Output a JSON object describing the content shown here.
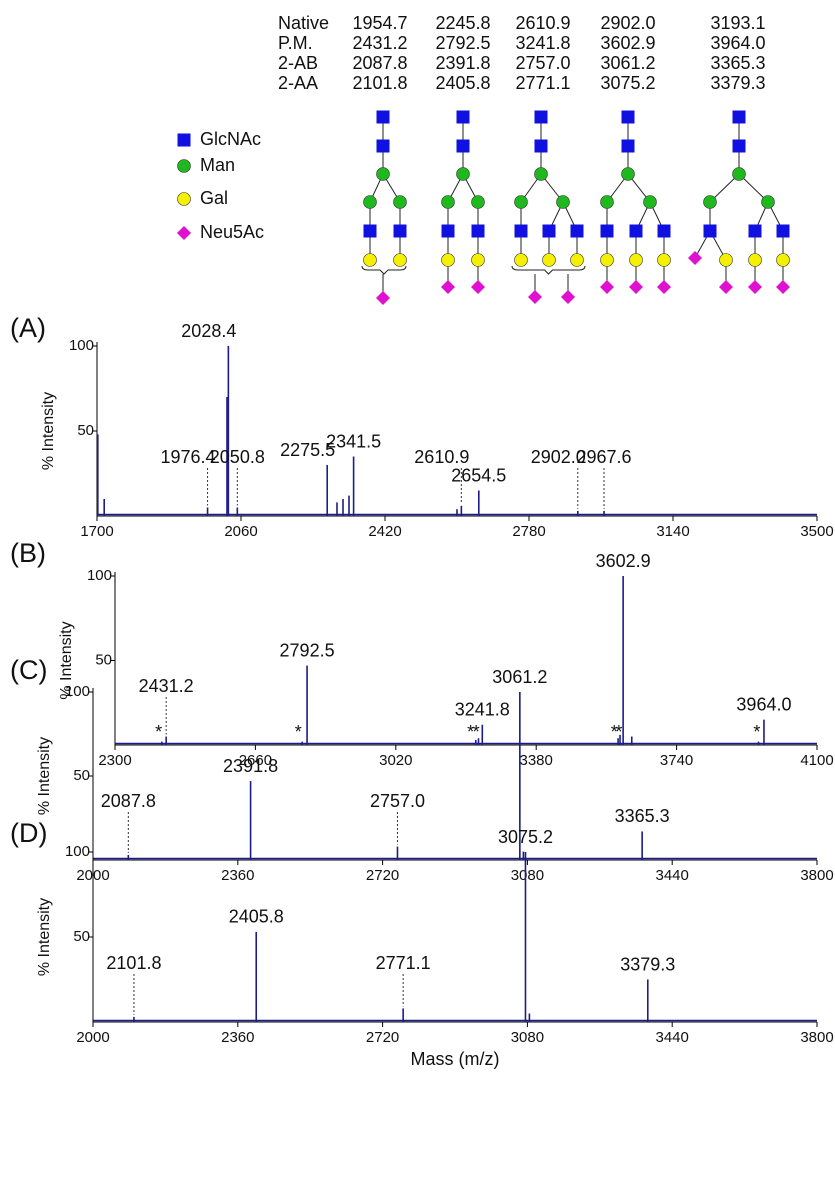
{
  "mass_table": {
    "rows": [
      {
        "label": "Native",
        "values": [
          "1954.7",
          "2245.8",
          "2610.9",
          "2902.0",
          "3193.1"
        ]
      },
      {
        "label": "P.M.",
        "values": [
          "2431.2",
          "2792.5",
          "3241.8",
          "3602.9",
          "3964.0"
        ]
      },
      {
        "label": "2-AB",
        "values": [
          "2087.8",
          "2391.8",
          "2757.0",
          "3061.2",
          "3365.3"
        ]
      },
      {
        "label": "2-AA",
        "values": [
          "2101.8",
          "2405.8",
          "2771.1",
          "3075.2",
          "3379.3"
        ]
      }
    ]
  },
  "legend": [
    "GlcNAc",
    "Man",
    "Gal",
    "Neu5Ac"
  ],
  "chart_data": [
    {
      "type": "stem",
      "panel": "(A)",
      "ylabel": "% Intensity",
      "color": "#1c1c8a",
      "xlim": [
        1700,
        3500
      ],
      "xticks": [
        1700,
        2060,
        2420,
        2780,
        3140,
        3500
      ],
      "ylim": [
        0,
        100
      ],
      "yticks": [
        50,
        100
      ],
      "x": [
        1702,
        1718,
        1976.4,
        2025,
        2028.4,
        2050.8,
        2275.5,
        2300,
        2315,
        2330,
        2341.5,
        2600,
        2610.9,
        2654.5,
        2902.0,
        2967.6
      ],
      "values": [
        48,
        10,
        5,
        70,
        100,
        5,
        30,
        8,
        10,
        12,
        35,
        4,
        6,
        15,
        3,
        3
      ],
      "labels": [
        null,
        null,
        "1976.4",
        null,
        "2028.4",
        "2050.8",
        "2275.5",
        null,
        null,
        null,
        "2341.5",
        null,
        "2610.9",
        "2654.5",
        "2902.0",
        "2967.6"
      ]
    },
    {
      "type": "stem",
      "panel": "(B)",
      "ylabel": "% Intensity",
      "color": "#1c1c8a",
      "xlim": [
        2300,
        4100
      ],
      "xticks": [
        2300,
        2660,
        3020,
        3380,
        3740,
        4100
      ],
      "ylim": [
        0,
        100
      ],
      "yticks": [
        50,
        100
      ],
      "x": [
        2420,
        2431.2,
        2780,
        2792.5,
        3225,
        3232,
        3241.8,
        3590,
        3595,
        3602.9,
        3625,
        3950,
        3964.0
      ],
      "values": [
        2,
        5,
        2,
        47,
        3,
        4,
        12,
        4,
        6,
        100,
        5,
        2,
        15
      ],
      "labels": [
        null,
        "2431.2",
        null,
        "2792.5",
        null,
        null,
        "3241.8",
        null,
        null,
        "3602.9",
        null,
        null,
        "3964.0"
      ],
      "annotations": [
        {
          "x": 2412,
          "text": "*"
        },
        {
          "x": 2770,
          "text": "*"
        },
        {
          "x": 3212,
          "text": "*"
        },
        {
          "x": 3226,
          "text": "*"
        },
        {
          "x": 3580,
          "text": "*"
        },
        {
          "x": 3592,
          "text": "*"
        },
        {
          "x": 3946,
          "text": "*"
        }
      ]
    },
    {
      "type": "stem",
      "panel": "(C)",
      "ylabel": "% Intensity",
      "color": "#1c1c8a",
      "xlim": [
        2000,
        3800
      ],
      "xticks": [
        2000,
        2360,
        2720,
        3080,
        3440,
        3800
      ],
      "ylim": [
        0,
        100
      ],
      "yticks": [
        50,
        100
      ],
      "x": [
        2087.8,
        2391.8,
        2757.0,
        3061.2,
        3070,
        3365.3
      ],
      "values": [
        3,
        47,
        8,
        100,
        5,
        17
      ],
      "labels": [
        "2087.8",
        "2391.8",
        "2757.0",
        "3061.2",
        null,
        "3365.3"
      ]
    },
    {
      "type": "stem",
      "panel": "(D)",
      "ylabel": "% Intensity",
      "xlabel": "Mass (m/z)",
      "color": "#1c1c8a",
      "xlim": [
        2000,
        3800
      ],
      "xticks": [
        2000,
        2360,
        2720,
        3080,
        3440,
        3800
      ],
      "ylim": [
        0,
        100
      ],
      "yticks": [
        50,
        100
      ],
      "x": [
        2101.8,
        2405.8,
        2771.1,
        3075.2,
        3085,
        3379.3
      ],
      "values": [
        3,
        53,
        8,
        100,
        5,
        25
      ],
      "labels": [
        "2101.8",
        "2405.8",
        "2771.1",
        "3075.2",
        null,
        "3379.3"
      ]
    }
  ]
}
